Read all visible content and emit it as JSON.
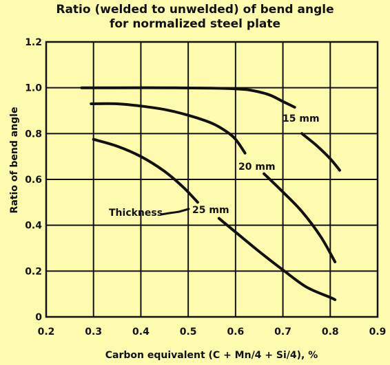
{
  "chart_data": {
    "type": "line",
    "title": "Ratio (welded to unwelded) of bend angle",
    "subtitle": "for normalized steel plate",
    "xlabel": "Carbon equivalent (C + Mn/4 + Si/4), %",
    "ylabel": "Ratio of bend angle",
    "xlim": [
      0.2,
      0.9
    ],
    "ylim": [
      0,
      1.2
    ],
    "x_ticks": [
      "0.2",
      "0.3",
      "0.4",
      "0.5",
      "0.6",
      "0.7",
      "0.8",
      "0.9"
    ],
    "y_ticks": [
      "0",
      "0.2",
      "0.4",
      "0.6",
      "0.8",
      "1.0",
      "1.2"
    ],
    "grid": true,
    "legend_title": "Thickness",
    "series": [
      {
        "name": "15 mm",
        "segments": [
          [
            [
              0.275,
              1.0
            ],
            [
              0.35,
              1.0
            ],
            [
              0.45,
              1.0
            ],
            [
              0.55,
              0.998
            ],
            [
              0.6,
              0.995
            ],
            [
              0.63,
              0.99
            ],
            [
              0.67,
              0.97
            ],
            [
              0.7,
              0.94
            ],
            [
              0.725,
              0.915
            ]
          ],
          [
            [
              0.74,
              0.8
            ],
            [
              0.77,
              0.75
            ],
            [
              0.8,
              0.69
            ],
            [
              0.82,
              0.64
            ]
          ]
        ]
      },
      {
        "name": "20 mm",
        "segments": [
          [
            [
              0.295,
              0.93
            ],
            [
              0.35,
              0.93
            ],
            [
              0.4,
              0.92
            ],
            [
              0.45,
              0.905
            ],
            [
              0.5,
              0.88
            ],
            [
              0.55,
              0.845
            ],
            [
              0.58,
              0.81
            ],
            [
              0.6,
              0.775
            ],
            [
              0.62,
              0.715
            ]
          ],
          [
            [
              0.66,
              0.625
            ],
            [
              0.7,
              0.545
            ],
            [
              0.74,
              0.46
            ],
            [
              0.78,
              0.35
            ],
            [
              0.81,
              0.24
            ]
          ]
        ]
      },
      {
        "name": "25 mm",
        "segments": [
          [
            [
              0.3,
              0.775
            ],
            [
              0.35,
              0.745
            ],
            [
              0.4,
              0.7
            ],
            [
              0.45,
              0.635
            ],
            [
              0.49,
              0.565
            ],
            [
              0.52,
              0.5
            ]
          ],
          [
            [
              0.565,
              0.43
            ],
            [
              0.6,
              0.37
            ],
            [
              0.65,
              0.285
            ],
            [
              0.7,
              0.205
            ],
            [
              0.75,
              0.13
            ],
            [
              0.8,
              0.085
            ],
            [
              0.81,
              0.075
            ]
          ]
        ]
      }
    ]
  }
}
